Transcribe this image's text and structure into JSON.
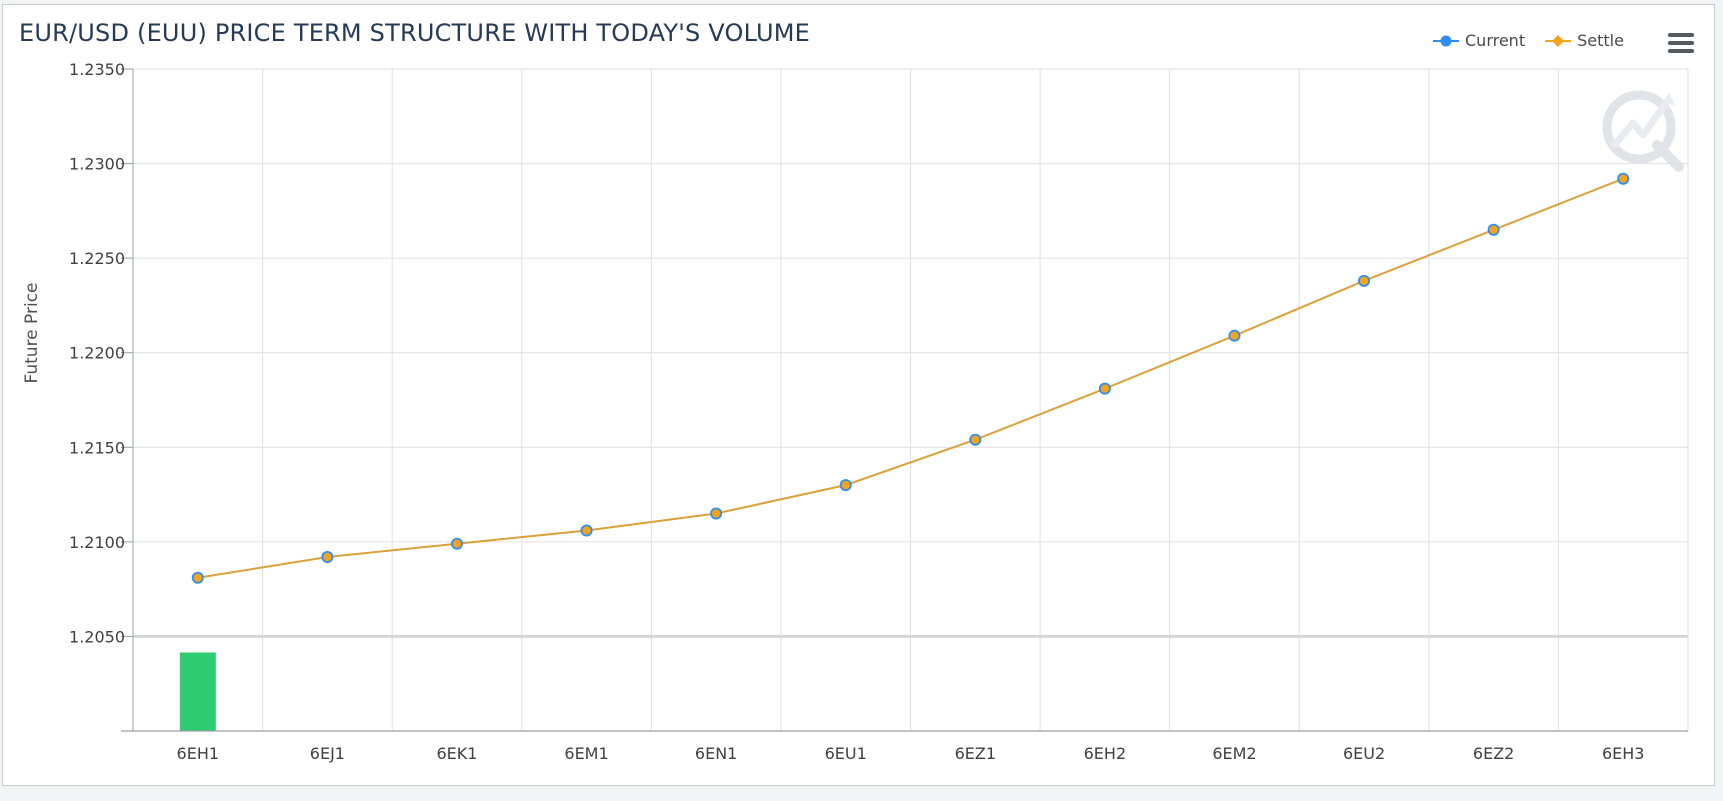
{
  "title": "EUR/USD (EUU) PRICE TERM STRUCTURE WITH TODAY'S VOLUME",
  "legend": {
    "current_label": "Current",
    "settle_label": "Settle"
  },
  "icons": {
    "menu": "hamburger-menu-icon",
    "watermark": "logo-watermark-icon"
  },
  "colors": {
    "current": "#2f8ef0",
    "settle": "#f4a41c",
    "settle_line": "#d9a13a",
    "volume_bar": "#2ecc71",
    "grid": "#e0e0e0",
    "axis": "#9aa0a6",
    "title": "#263a56"
  },
  "chart_data": {
    "type": "line",
    "title": "EUR/USD (EUU) PRICE TERM STRUCTURE WITH TODAY'S VOLUME",
    "ylabel": "Future Price",
    "xlabel": "",
    "categories": [
      "6EH1",
      "6EJ1",
      "6EK1",
      "6EM1",
      "6EN1",
      "6EU1",
      "6EZ1",
      "6EH2",
      "6EM2",
      "6EU2",
      "6EZ2",
      "6EH3"
    ],
    "ylim": [
      1.2,
      1.235
    ],
    "yticks": [
      "1.2050",
      "1.2100",
      "1.2150",
      "1.2200",
      "1.2250",
      "1.2300",
      "1.2350"
    ],
    "grid": true,
    "legend_position": "top-right",
    "series": [
      {
        "name": "Current",
        "marker": "circle",
        "values": [
          1.2081,
          1.2092,
          1.2099,
          1.2106,
          1.2115,
          1.213,
          1.2154,
          1.2181,
          1.2209,
          1.2238,
          1.2265,
          1.2292
        ]
      },
      {
        "name": "Settle",
        "marker": "diamond",
        "values": [
          1.2081,
          1.2092,
          1.2099,
          1.2106,
          1.2115,
          1.213,
          1.2154,
          1.2181,
          1.2209,
          1.2238,
          1.2265,
          1.2292
        ]
      }
    ],
    "volume": {
      "values": [
        0.83,
        0,
        0,
        0,
        0,
        0,
        0,
        0,
        0,
        0,
        0,
        0
      ]
    }
  }
}
